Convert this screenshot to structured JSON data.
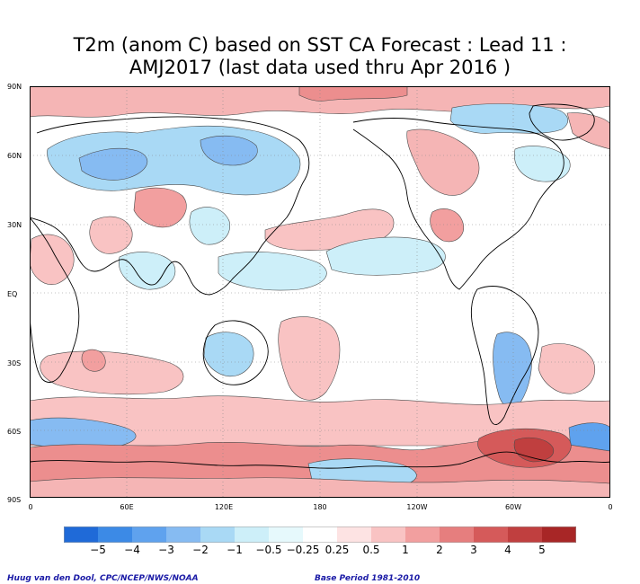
{
  "title": {
    "line1": "T2m (anom C) based on SST CA Forecast : Lead 11 :",
    "line2": "AMJ2017 (last data used thru Apr 2016 )"
  },
  "lat_labels": [
    "90N",
    "60N",
    "30N",
    "EQ",
    "30S",
    "60S",
    "90S"
  ],
  "lon_labels": [
    "0",
    "60E",
    "120E",
    "180",
    "120W",
    "60W",
    "0"
  ],
  "legend": {
    "labels": [
      "−5",
      "−4",
      "−3",
      "−2",
      "−1",
      "−0.5",
      "−0.25",
      "0.25",
      "0.5",
      "1",
      "2",
      "3",
      "4",
      "5"
    ],
    "colors": [
      "#1f6ad8",
      "#3c8ae6",
      "#5fa2ee",
      "#86bbf2",
      "#a9d9f5",
      "#cdeff9",
      "#e6f9fc",
      "#ffffff",
      "#fde3e3",
      "#f9c3c3",
      "#f29f9f",
      "#e67e7e",
      "#d55a5a",
      "#c03f3f",
      "#a82626"
    ]
  },
  "credits": {
    "left": "Huug van den Dool, CPC/NCEP/NWS/NOAA",
    "right": "Base Period 1981-2010"
  },
  "colors": {
    "land_outline": "#000000",
    "contour_line": "#4a4a4a",
    "grid_line": "#888888"
  }
}
